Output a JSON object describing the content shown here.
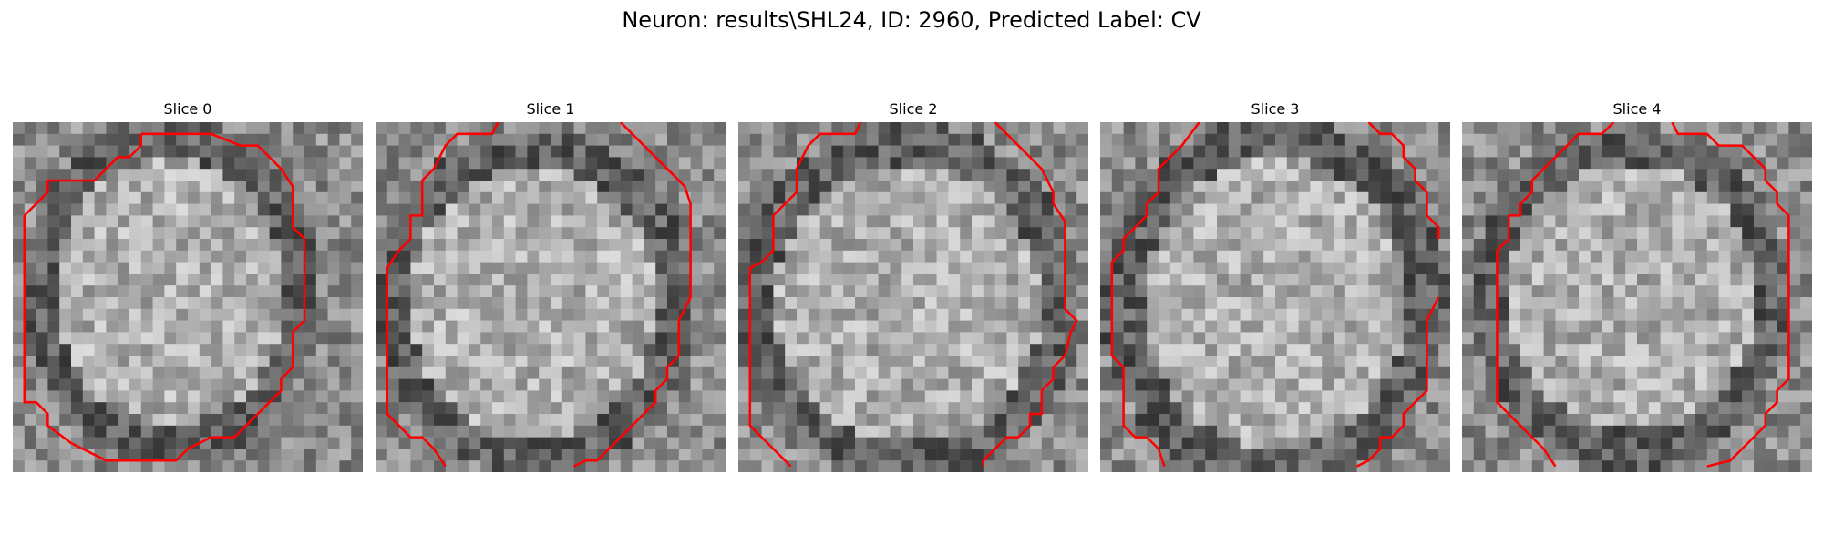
{
  "figure": {
    "title": "Neuron: results\\SHL24, ID: 2960, Predicted Label: CV"
  },
  "panels": [
    {
      "title": "Slice 0",
      "contour_color": "#ff0000"
    },
    {
      "title": "Slice 1",
      "contour_color": "#ff0000"
    },
    {
      "title": "Slice 2",
      "contour_color": "#ff0000"
    },
    {
      "title": "Slice 3",
      "contour_color": "#ff0000"
    },
    {
      "title": "Slice 4",
      "contour_color": "#ff0000"
    }
  ],
  "image_style": {
    "colormap": "grayscale"
  }
}
